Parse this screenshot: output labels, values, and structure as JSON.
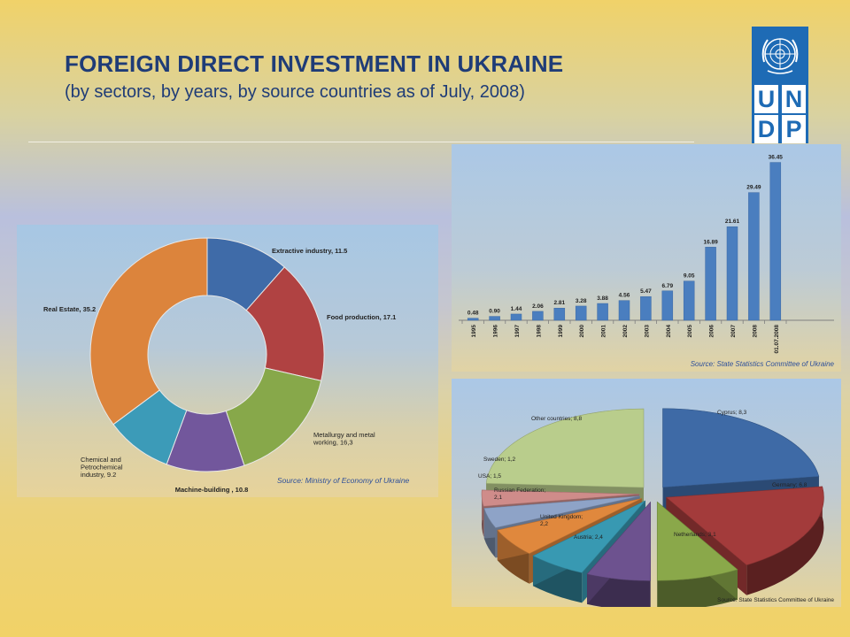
{
  "slide": {
    "title": "FOREIGN DIRECT INVESTMENT IN UKRAINE",
    "subtitle": "(by sectors, by years, by source countries as of July, 2008)"
  },
  "logo": {
    "letters": [
      "U",
      "N",
      "D",
      "P"
    ]
  },
  "colors": {
    "title": "#1f3c77",
    "logo": "#1e6bb5",
    "bar": "#4a7ebf"
  },
  "chart_data": [
    {
      "type": "pie",
      "variant": "donut",
      "source": "Source: Ministry of Economy of Ukraine",
      "slices": [
        {
          "label": "Extractive industry, 11.5",
          "value": 11.5,
          "color": "#3f6ba8"
        },
        {
          "label": "Food production, 17.1",
          "value": 17.1,
          "color": "#b04242"
        },
        {
          "label": "Metallurgy and metal working, 16,3",
          "value": 16.3,
          "color": "#87a84a"
        },
        {
          "label": "Machine-building , 10.8",
          "value": 10.8,
          "color": "#72579c"
        },
        {
          "label": "Chemical and Petrochemical industry, 9.2",
          "value": 9.2,
          "color": "#3c9bb8"
        },
        {
          "label": "Real Estate, 35.2",
          "value": 35.2,
          "color": "#dc843c"
        }
      ]
    },
    {
      "type": "bar",
      "source": "Source: State Statistics Committee of Ukraine",
      "categories": [
        "1995",
        "1996",
        "1997",
        "1998",
        "1999",
        "2000",
        "2001",
        "2002",
        "2003",
        "2004",
        "2005",
        "2006",
        "2007",
        "2008",
        "01.07.2008"
      ],
      "values": [
        0.48,
        0.9,
        1.44,
        2.06,
        2.81,
        3.28,
        3.88,
        4.56,
        5.47,
        6.79,
        9.05,
        16.89,
        21.61,
        29.49,
        36.45
      ],
      "value_labels": [
        "0.48",
        "0.90",
        "1.44",
        "2.06",
        "2.81",
        "3.28",
        "3.88",
        "4.56",
        "5.47",
        "6.79",
        "9.05",
        "16.89",
        "21.61",
        "29.49",
        "36.45"
      ],
      "ylim": [
        0,
        38
      ]
    },
    {
      "type": "pie",
      "variant": "exploded-3d",
      "source": "Source: State Statistics Committee of Ukraine",
      "slices": [
        {
          "label": "Cyprus; 8,3",
          "value": 8.3,
          "color": "#3e6aa6"
        },
        {
          "label": "Germany; 6,8",
          "value": 6.8,
          "color": "#a33b3b"
        },
        {
          "label": "Netherlands; 3,1",
          "value": 3.1,
          "color": "#8aa84a"
        },
        {
          "label": "Austria; 2,4",
          "value": 2.4,
          "color": "#6d528f"
        },
        {
          "label": "United Kingdom; 2,2",
          "value": 2.2,
          "color": "#3899b2"
        },
        {
          "label": "Russian Federation; 2,1",
          "value": 2.1,
          "color": "#e0883d"
        },
        {
          "label": "USA; 1,5",
          "value": 1.5,
          "color": "#8ea3c7"
        },
        {
          "label": "Sweden; 1,2",
          "value": 1.2,
          "color": "#cf8c8a"
        },
        {
          "label": "Other countries; 8,8",
          "value": 8.8,
          "color": "#b9cd8c"
        }
      ]
    }
  ]
}
